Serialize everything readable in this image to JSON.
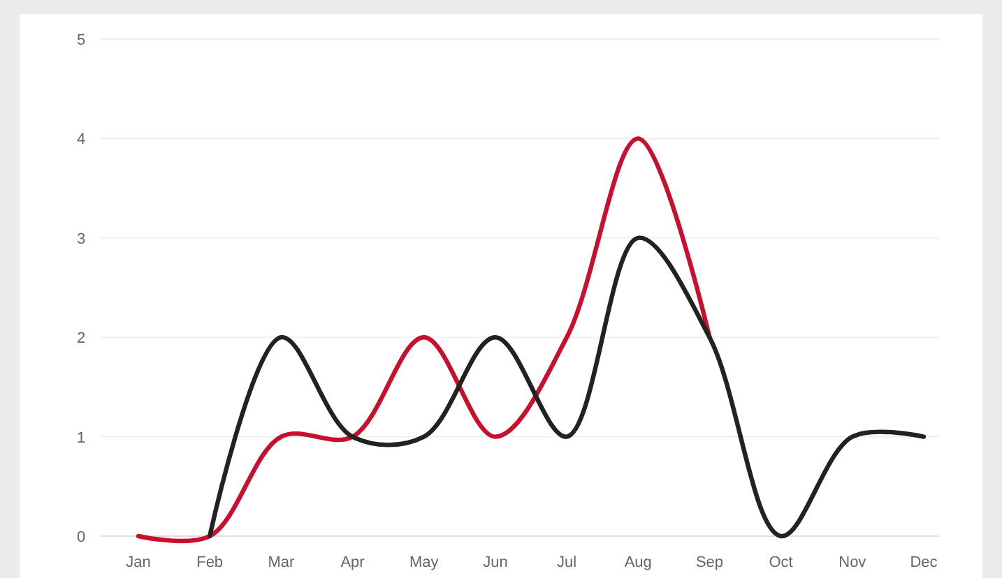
{
  "chart_data": {
    "type": "line",
    "categories": [
      "Jan",
      "Feb",
      "Mar",
      "Apr",
      "May",
      "Jun",
      "Jul",
      "Aug",
      "Sep",
      "Oct",
      "Nov",
      "Dec"
    ],
    "series": [
      {
        "color": "#c8102e",
        "values": [
          0,
          0,
          1,
          1,
          2,
          1,
          2,
          4,
          2,
          null,
          null,
          null
        ]
      },
      {
        "color": "#222222",
        "values": [
          null,
          0,
          2,
          1,
          1,
          2,
          1,
          3,
          2,
          0,
          1,
          1
        ]
      }
    ],
    "ylim": [
      0,
      5
    ],
    "yticks": [
      0,
      1,
      2,
      3,
      4,
      5
    ],
    "grid": "y",
    "marker": "none",
    "line_style": "solid"
  }
}
